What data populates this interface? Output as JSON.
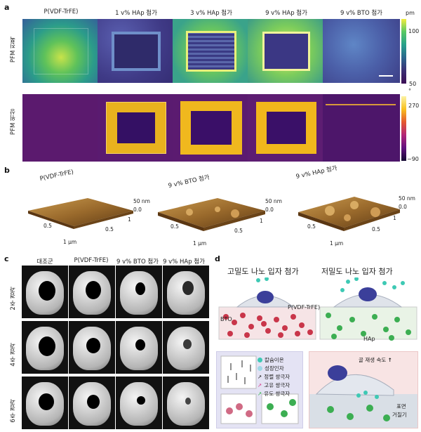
{
  "panels": {
    "a": "a",
    "b": "b",
    "c": "c",
    "d": "d"
  },
  "panel_a": {
    "columns": [
      "P(VDF-TrFE)",
      "1 v% HAp 첨가",
      "3 v% HAp 첨가",
      "9 v% HAp 첨가",
      "9 v% BTO 첨가"
    ],
    "rows": [
      "PFM 진폭",
      "PFM 위상"
    ],
    "amp_colorbar": {
      "unit": "pm",
      "max": "100",
      "min": "50"
    },
    "phase_colorbar": {
      "unit": "°",
      "max": "270",
      "min": "−90"
    },
    "colors": {
      "amp_low": "#3b2f74",
      "amp_high": "#f3ec3e",
      "phase_low": "#1a0b3a",
      "phase_mid": "#6a1f7d",
      "phase_high": "#f2b51f"
    }
  },
  "panel_b": {
    "titles": [
      "P(VDF-TrFE)",
      "9 v% BTO 첨가",
      "9 v% HAp 첨가"
    ],
    "z_top": "50 nm",
    "z_zero": "0.0",
    "axis_mid": "0.5",
    "axis_one": "1",
    "axis_um": "1 µm",
    "surface_color": "#9a6a2c"
  },
  "panel_c": {
    "columns": [
      "대조군",
      "P(VDF-TrFE)",
      "9 v% BTO 첨가",
      "9 v% HAp 첨가"
    ],
    "rows": [
      "2주 경과",
      "4주 경과",
      "6주 경과"
    ]
  },
  "panel_d": {
    "title_left": "고밀도 나노 입자 첨가",
    "title_right": "저밀도 나노 입자 첨가",
    "label_pvdf": "P(VDF-TrFE)",
    "label_bto": "BTO",
    "label_hap": "HAp",
    "legend": [
      {
        "label": "칼슘이온",
        "color": "#3ec9b4",
        "kind": "dot"
      },
      {
        "label": "성장인자",
        "color": "#9fd8e6",
        "kind": "dot"
      },
      {
        "label": "정렬 쌍극자",
        "color": "#222222",
        "kind": "arrow"
      },
      {
        "label": "고유 쌍극자",
        "color": "#d9408d",
        "kind": "arrow"
      },
      {
        "label": "유도 쌍극자",
        "color": "#35b34a",
        "kind": "arrow"
      }
    ],
    "bone_regen": "골 재생 속도",
    "surface_rough_1": "표면",
    "surface_rough_2": "거칠기",
    "up_arrow": "↑"
  }
}
